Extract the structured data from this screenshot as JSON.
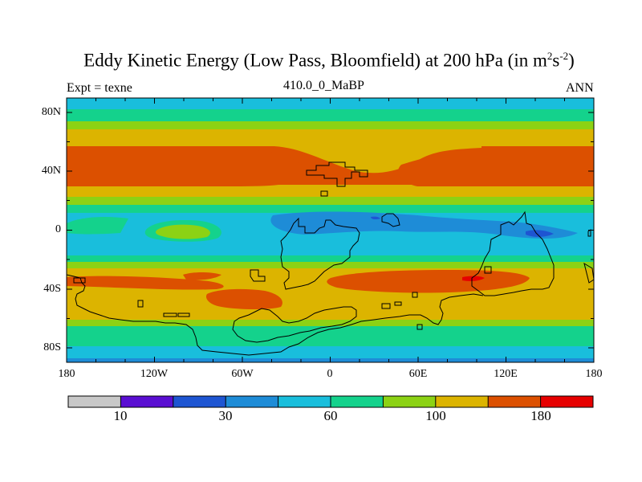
{
  "title": {
    "main": "Eddy Kinetic Energy (Low Pass, Bloomfield) at 200 hPa (in m",
    "sup1": "2",
    "mid": "s",
    "sup2": "-2",
    "close": ")"
  },
  "subtitle": {
    "left": "Expt = texne",
    "center": "410.0_0_MaBP",
    "right": "ANN"
  },
  "colors": {
    "bands": [
      "#c8c8c8",
      "#5a0fd2",
      "#1e55d2",
      "#1e8cd7",
      "#19bedc",
      "#14d28c",
      "#8cd214",
      "#dcb400",
      "#dc5000",
      "#e60000"
    ],
    "frame": "#000000"
  },
  "chart_data": {
    "type": "heatmap",
    "title": "Eddy Kinetic Energy (Low Pass, Bloomfield) at 200 hPa (in m2s-2)",
    "field": "eddy kinetic energy",
    "units": "m2 s-2",
    "level": "200 hPa",
    "projection": "cylindrical equidistant",
    "xlim": [
      -180,
      180
    ],
    "ylim": [
      -90,
      90
    ],
    "x_ticks": [
      "180",
      "120W",
      "60W",
      "0",
      "60E",
      "120E",
      "180"
    ],
    "y_ticks": [
      "80N",
      "40N",
      "0",
      "40S",
      "80S"
    ],
    "colorbar_levels": [
      "10",
      "30",
      "60",
      "100",
      "180"
    ],
    "zonal_bands": [
      {
        "lat_range": [
          78,
          90
        ],
        "class": "60-80"
      },
      {
        "lat_range": [
          65,
          78
        ],
        "class": "80-100"
      },
      {
        "lat_range": [
          57,
          65
        ],
        "class": "100-140"
      },
      {
        "lat_range": [
          28,
          57
        ],
        "class": "140-180"
      },
      {
        "lat_range": [
          15,
          28
        ],
        "class": "80-100"
      },
      {
        "lat_range": [
          -12,
          12
        ],
        "class": "40-60"
      },
      {
        "lat_range": [
          -60,
          -25
        ],
        "class": "100-140"
      },
      {
        "lat_range": [
          -80,
          -65
        ],
        "class": "60-80"
      }
    ]
  }
}
